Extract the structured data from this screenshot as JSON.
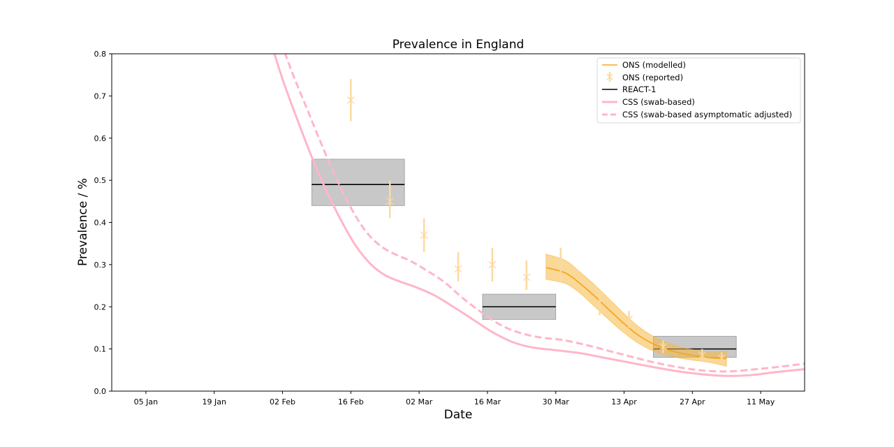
{
  "chart_data": {
    "type": "line",
    "title": "Prevalence in England",
    "xlabel": "Date",
    "ylabel": "Prevalence / %",
    "xlim": [
      "2021-12-29",
      "2022-05-20"
    ],
    "ylim": [
      0,
      0.8
    ],
    "x_ticks": [
      {
        "date": "2022-01-05",
        "label": "05 Jan"
      },
      {
        "date": "2022-01-19",
        "label": "19 Jan"
      },
      {
        "date": "2022-02-02",
        "label": "02 Feb"
      },
      {
        "date": "2022-02-16",
        "label": "16 Feb"
      },
      {
        "date": "2022-03-02",
        "label": "02 Mar"
      },
      {
        "date": "2022-03-16",
        "label": "16 Mar"
      },
      {
        "date": "2022-03-30",
        "label": "30 Mar"
      },
      {
        "date": "2022-04-13",
        "label": "13 Apr"
      },
      {
        "date": "2022-04-27",
        "label": "27 Apr"
      },
      {
        "date": "2022-05-11",
        "label": "11 May"
      }
    ],
    "y_ticks": [
      {
        "value": 0.0,
        "label": "0.0"
      },
      {
        "value": 0.1,
        "label": "0.1"
      },
      {
        "value": 0.2,
        "label": "0.2"
      },
      {
        "value": 0.3,
        "label": "0.3"
      },
      {
        "value": 0.4,
        "label": "0.4"
      },
      {
        "value": 0.5,
        "label": "0.5"
      },
      {
        "value": 0.6,
        "label": "0.6"
      },
      {
        "value": 0.7,
        "label": "0.7"
      },
      {
        "value": 0.8,
        "label": "0.8"
      }
    ],
    "grid": false,
    "legend_position": "top-right",
    "colors": {
      "ons": "#f5a623",
      "ons_reported": "#fcd9a0",
      "ons_band": "#f5b841",
      "react": "#000000",
      "react_box": "#c8c8c8",
      "css": "#ffb6c8"
    },
    "series": [
      {
        "name": "ONS (modelled)",
        "kind": "line_band",
        "points": [
          {
            "x": "2022-03-28",
            "y": 0.293,
            "lo": 0.265,
            "hi": 0.325
          },
          {
            "x": "2022-04-01",
            "y": 0.28,
            "lo": 0.255,
            "hi": 0.31
          },
          {
            "x": "2022-04-04",
            "y": 0.255,
            "lo": 0.232,
            "hi": 0.282
          },
          {
            "x": "2022-04-07",
            "y": 0.225,
            "lo": 0.2,
            "hi": 0.252
          },
          {
            "x": "2022-04-10",
            "y": 0.192,
            "lo": 0.168,
            "hi": 0.218
          },
          {
            "x": "2022-04-13",
            "y": 0.16,
            "lo": 0.138,
            "hi": 0.184
          },
          {
            "x": "2022-04-16",
            "y": 0.132,
            "lo": 0.113,
            "hi": 0.153
          },
          {
            "x": "2022-04-19",
            "y": 0.112,
            "lo": 0.095,
            "hi": 0.13
          },
          {
            "x": "2022-04-22",
            "y": 0.098,
            "lo": 0.084,
            "hi": 0.114
          },
          {
            "x": "2022-04-25",
            "y": 0.089,
            "lo": 0.077,
            "hi": 0.103
          },
          {
            "x": "2022-04-28",
            "y": 0.083,
            "lo": 0.072,
            "hi": 0.097
          },
          {
            "x": "2022-05-01",
            "y": 0.079,
            "lo": 0.067,
            "hi": 0.093
          },
          {
            "x": "2022-05-04",
            "y": 0.077,
            "lo": 0.059,
            "hi": 0.095
          }
        ]
      },
      {
        "name": "ONS (reported)",
        "kind": "errorbar",
        "points": [
          {
            "x": "2022-02-16",
            "y": 0.69,
            "lo": 0.64,
            "hi": 0.74
          },
          {
            "x": "2022-02-24",
            "y": 0.45,
            "lo": 0.41,
            "hi": 0.5
          },
          {
            "x": "2022-03-03",
            "y": 0.37,
            "lo": 0.33,
            "hi": 0.41
          },
          {
            "x": "2022-03-10",
            "y": 0.29,
            "lo": 0.26,
            "hi": 0.33
          },
          {
            "x": "2022-03-17",
            "y": 0.3,
            "lo": 0.26,
            "hi": 0.34
          },
          {
            "x": "2022-03-24",
            "y": 0.27,
            "lo": 0.24,
            "hi": 0.31
          },
          {
            "x": "2022-03-31",
            "y": 0.3,
            "lo": 0.26,
            "hi": 0.34
          },
          {
            "x": "2022-04-08",
            "y": 0.21,
            "lo": 0.18,
            "hi": 0.24
          },
          {
            "x": "2022-04-14",
            "y": 0.17,
            "lo": 0.15,
            "hi": 0.19
          },
          {
            "x": "2022-04-21",
            "y": 0.105,
            "lo": 0.09,
            "hi": 0.12
          },
          {
            "x": "2022-04-29",
            "y": 0.085,
            "lo": 0.07,
            "hi": 0.1
          },
          {
            "x": "2022-05-03",
            "y": 0.078,
            "lo": 0.065,
            "hi": 0.092
          }
        ]
      },
      {
        "name": "REACT-1",
        "kind": "interval_box",
        "boxes": [
          {
            "x0": "2022-02-08",
            "x1": "2022-02-27",
            "y": 0.49,
            "lo": 0.44,
            "hi": 0.55
          },
          {
            "x0": "2022-03-15",
            "x1": "2022-03-30",
            "y": 0.2,
            "lo": 0.17,
            "hi": 0.23
          },
          {
            "x0": "2022-04-19",
            "x1": "2022-05-06",
            "y": 0.1,
            "lo": 0.08,
            "hi": 0.13
          }
        ]
      },
      {
        "name": "CSS (swab-based)",
        "kind": "line",
        "dashed": false,
        "points": [
          {
            "x": "2022-01-30",
            "y": 0.85
          },
          {
            "x": "2022-02-02",
            "y": 0.74
          },
          {
            "x": "2022-02-05",
            "y": 0.645
          },
          {
            "x": "2022-02-08",
            "y": 0.555
          },
          {
            "x": "2022-02-11",
            "y": 0.475
          },
          {
            "x": "2022-02-14",
            "y": 0.405
          },
          {
            "x": "2022-02-17",
            "y": 0.345
          },
          {
            "x": "2022-02-20",
            "y": 0.302
          },
          {
            "x": "2022-02-23",
            "y": 0.275
          },
          {
            "x": "2022-02-26",
            "y": 0.26
          },
          {
            "x": "2022-03-01",
            "y": 0.248
          },
          {
            "x": "2022-03-05",
            "y": 0.228
          },
          {
            "x": "2022-03-09",
            "y": 0.2
          },
          {
            "x": "2022-03-13",
            "y": 0.17
          },
          {
            "x": "2022-03-17",
            "y": 0.14
          },
          {
            "x": "2022-03-21",
            "y": 0.117
          },
          {
            "x": "2022-03-25",
            "y": 0.104
          },
          {
            "x": "2022-03-30",
            "y": 0.097
          },
          {
            "x": "2022-04-04",
            "y": 0.09
          },
          {
            "x": "2022-04-09",
            "y": 0.079
          },
          {
            "x": "2022-04-14",
            "y": 0.068
          },
          {
            "x": "2022-04-19",
            "y": 0.057
          },
          {
            "x": "2022-04-24",
            "y": 0.047
          },
          {
            "x": "2022-04-29",
            "y": 0.04
          },
          {
            "x": "2022-05-04",
            "y": 0.036
          },
          {
            "x": "2022-05-09",
            "y": 0.038
          },
          {
            "x": "2022-05-14",
            "y": 0.045
          },
          {
            "x": "2022-05-20",
            "y": 0.052
          }
        ]
      },
      {
        "name": "CSS (swab-based asymptomatic adjusted)",
        "kind": "line",
        "dashed": true,
        "points": [
          {
            "x": "2022-02-01",
            "y": 0.85
          },
          {
            "x": "2022-02-04",
            "y": 0.755
          },
          {
            "x": "2022-02-07",
            "y": 0.67
          },
          {
            "x": "2022-02-10",
            "y": 0.585
          },
          {
            "x": "2022-02-13",
            "y": 0.505
          },
          {
            "x": "2022-02-16",
            "y": 0.435
          },
          {
            "x": "2022-02-19",
            "y": 0.38
          },
          {
            "x": "2022-02-22",
            "y": 0.345
          },
          {
            "x": "2022-02-25",
            "y": 0.325
          },
          {
            "x": "2022-02-28",
            "y": 0.31
          },
          {
            "x": "2022-03-03",
            "y": 0.29
          },
          {
            "x": "2022-03-07",
            "y": 0.26
          },
          {
            "x": "2022-03-11",
            "y": 0.22
          },
          {
            "x": "2022-03-15",
            "y": 0.185
          },
          {
            "x": "2022-03-19",
            "y": 0.155
          },
          {
            "x": "2022-03-23",
            "y": 0.137
          },
          {
            "x": "2022-03-27",
            "y": 0.127
          },
          {
            "x": "2022-03-31",
            "y": 0.122
          },
          {
            "x": "2022-04-05",
            "y": 0.11
          },
          {
            "x": "2022-04-10",
            "y": 0.095
          },
          {
            "x": "2022-04-15",
            "y": 0.08
          },
          {
            "x": "2022-04-20",
            "y": 0.066
          },
          {
            "x": "2022-04-25",
            "y": 0.055
          },
          {
            "x": "2022-04-30",
            "y": 0.048
          },
          {
            "x": "2022-05-05",
            "y": 0.047
          },
          {
            "x": "2022-05-10",
            "y": 0.052
          },
          {
            "x": "2022-05-15",
            "y": 0.058
          },
          {
            "x": "2022-05-20",
            "y": 0.065
          }
        ]
      }
    ]
  }
}
